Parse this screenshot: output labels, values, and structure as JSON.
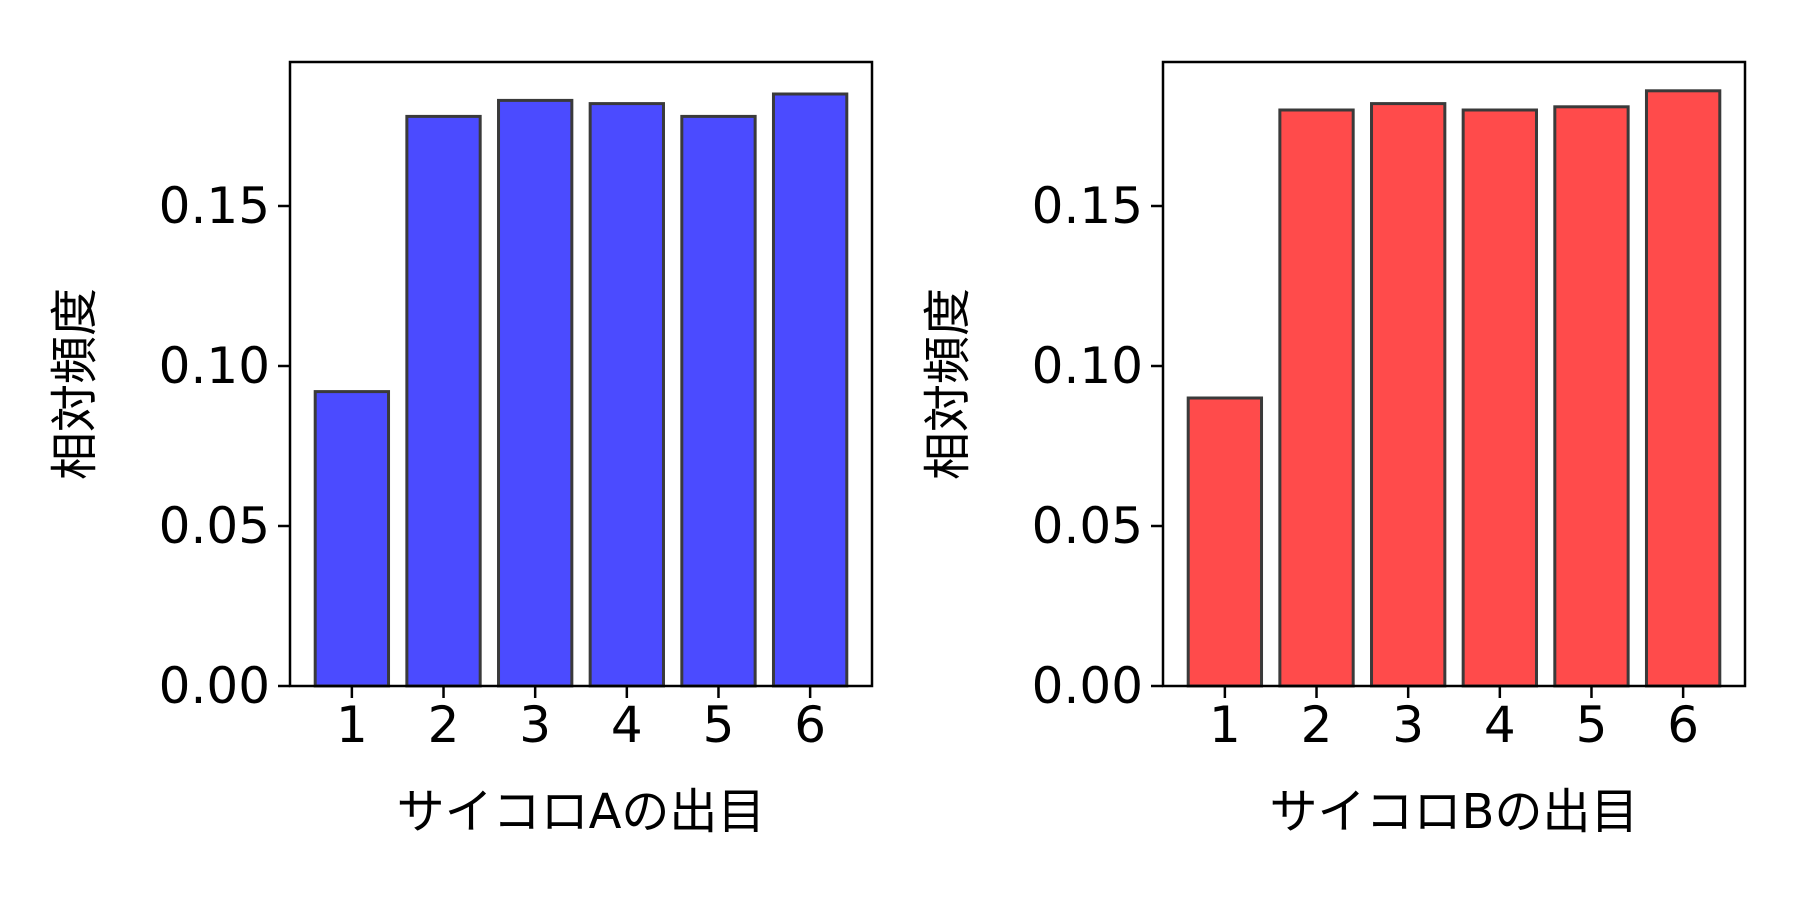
{
  "chart_data": [
    {
      "type": "bar",
      "categories": [
        "1",
        "2",
        "3",
        "4",
        "5",
        "6"
      ],
      "values": [
        0.092,
        0.178,
        0.183,
        0.182,
        0.178,
        0.185
      ],
      "xlabel": "サイコロAの出目",
      "ylabel": "相対頻度",
      "yticks": [
        "0.00",
        "0.05",
        "0.10",
        "0.15"
      ],
      "ylim": [
        0,
        0.195
      ],
      "color": "#4b4bff",
      "edgecolor": "#3a3a3a",
      "grid": false,
      "legend": "none"
    },
    {
      "type": "bar",
      "categories": [
        "1",
        "2",
        "3",
        "4",
        "5",
        "6"
      ],
      "values": [
        0.09,
        0.18,
        0.182,
        0.18,
        0.181,
        0.186
      ],
      "xlabel": "サイコロBの出目",
      "ylabel": "相対頻度",
      "yticks": [
        "0.00",
        "0.05",
        "0.10",
        "0.15"
      ],
      "ylim": [
        0,
        0.195
      ],
      "color": "#ff4b4b",
      "edgecolor": "#3a3a3a",
      "grid": false,
      "legend": "none"
    }
  ]
}
